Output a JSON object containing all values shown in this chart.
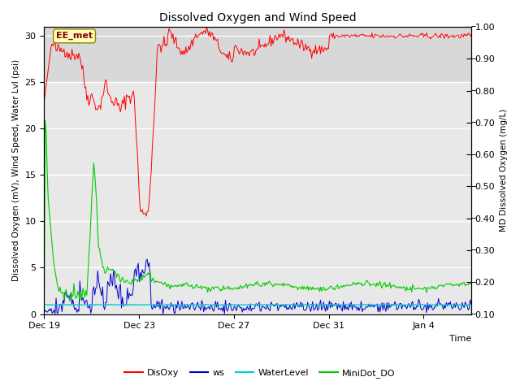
{
  "title": "Dissolved Oxygen and Wind Speed",
  "ylabel_left": "Dissolved Oxygen (mV), Wind Speed, Water Lvl (psi)",
  "ylabel_right": "MD Dissolved Oxygen (mg/L)",
  "xlabel": "Time",
  "ylim_left": [
    0,
    31
  ],
  "ylim_right": [
    0.1,
    1.0
  ],
  "yticks_left": [
    0,
    5,
    10,
    15,
    20,
    25,
    30
  ],
  "yticks_right": [
    0.1,
    0.2,
    0.3,
    0.4,
    0.5,
    0.6,
    0.7,
    0.8,
    0.9,
    1.0
  ],
  "ytick_labels_right": [
    "0.10",
    "0.20",
    "0.30",
    "0.40",
    "0.50",
    "0.60",
    "0.70",
    "0.80",
    "0.90",
    "1.00"
  ],
  "xtick_positions": [
    0,
    4,
    8,
    12,
    16
  ],
  "xtick_labels": [
    "Dec 19",
    "Dec 23",
    "Dec 27",
    "Dec 31",
    "Jan 4"
  ],
  "xlim": [
    0,
    18
  ],
  "annotation_text": "EE_met",
  "colors": {
    "DisOxy": "#ff0000",
    "ws": "#0000cc",
    "WaterLevel": "#00cccc",
    "MiniDot_DO": "#00cc00"
  },
  "legend_labels": [
    "DisOxy",
    "ws",
    "WaterLevel",
    "MiniDot_DO"
  ],
  "bg_upper": "#d8d8d8",
  "bg_lower": "#e8e8e8",
  "grid_color": "#ffffff",
  "figsize": [
    6.4,
    4.8
  ],
  "dpi": 100
}
